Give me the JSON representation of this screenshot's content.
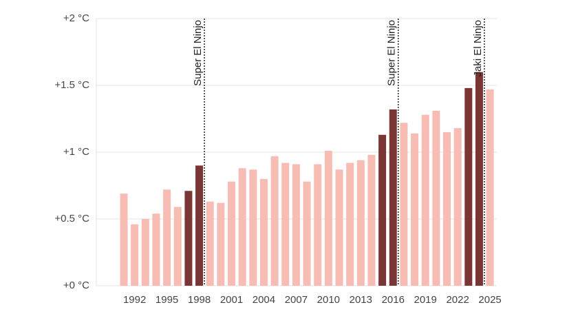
{
  "chart_data": {
    "type": "bar",
    "x": [
      1991,
      1992,
      1993,
      1994,
      1995,
      1996,
      1997,
      1998,
      1999,
      2000,
      2001,
      2002,
      2003,
      2004,
      2005,
      2006,
      2007,
      2008,
      2009,
      2010,
      2011,
      2012,
      2013,
      2014,
      2015,
      2016,
      2017,
      2018,
      2019,
      2020,
      2021,
      2022,
      2023,
      2024,
      2025
    ],
    "values": [
      0.69,
      0.46,
      0.5,
      0.54,
      0.72,
      0.59,
      0.71,
      0.9,
      0.63,
      0.62,
      0.78,
      0.88,
      0.87,
      0.8,
      0.97,
      0.92,
      0.91,
      0.78,
      0.91,
      1.01,
      0.87,
      0.92,
      0.94,
      0.98,
      1.13,
      1.32,
      1.22,
      1.14,
      1.28,
      1.31,
      1.15,
      1.18,
      1.48,
      1.6,
      1.47
    ],
    "colors": [
      "#f7bdb4",
      "#f7bdb4",
      "#f7bdb4",
      "#f7bdb4",
      "#f7bdb4",
      "#f7bdb4",
      "#7a3535",
      "#7a3535",
      "#f7bdb4",
      "#f7bdb4",
      "#f7bdb4",
      "#f7bdb4",
      "#f7bdb4",
      "#f7bdb4",
      "#f7bdb4",
      "#f7bdb4",
      "#f7bdb4",
      "#f7bdb4",
      "#f7bdb4",
      "#f7bdb4",
      "#f7bdb4",
      "#f7bdb4",
      "#f7bdb4",
      "#f7bdb4",
      "#7a3535",
      "#7a3535",
      "#f7bdb4",
      "#f7bdb4",
      "#f7bdb4",
      "#f7bdb4",
      "#f7bdb4",
      "#f7bdb4",
      "#7a3535",
      "#7a3535",
      "#f7bdb4"
    ],
    "xticks": [
      1992,
      1995,
      1998,
      2001,
      2004,
      2007,
      2010,
      2013,
      2016,
      2019,
      2022,
      2025
    ],
    "ylim": [
      0,
      2
    ],
    "yticks": [
      {
        "value": 0,
        "label": "+0 °C"
      },
      {
        "value": 0.5,
        "label": "+0.5 °C"
      },
      {
        "value": 1,
        "label": "+1 °C"
      },
      {
        "value": 1.5,
        "label": "+1.5 °C"
      },
      {
        "value": 2,
        "label": "+2 °C"
      }
    ],
    "grid": true,
    "annotations": [
      {
        "x": 1998,
        "label": "Super El Ninjo"
      },
      {
        "x": 2016,
        "label": "Super El Ninjo"
      },
      {
        "x": 2024,
        "label": "Jaki El Ninjo"
      }
    ]
  }
}
